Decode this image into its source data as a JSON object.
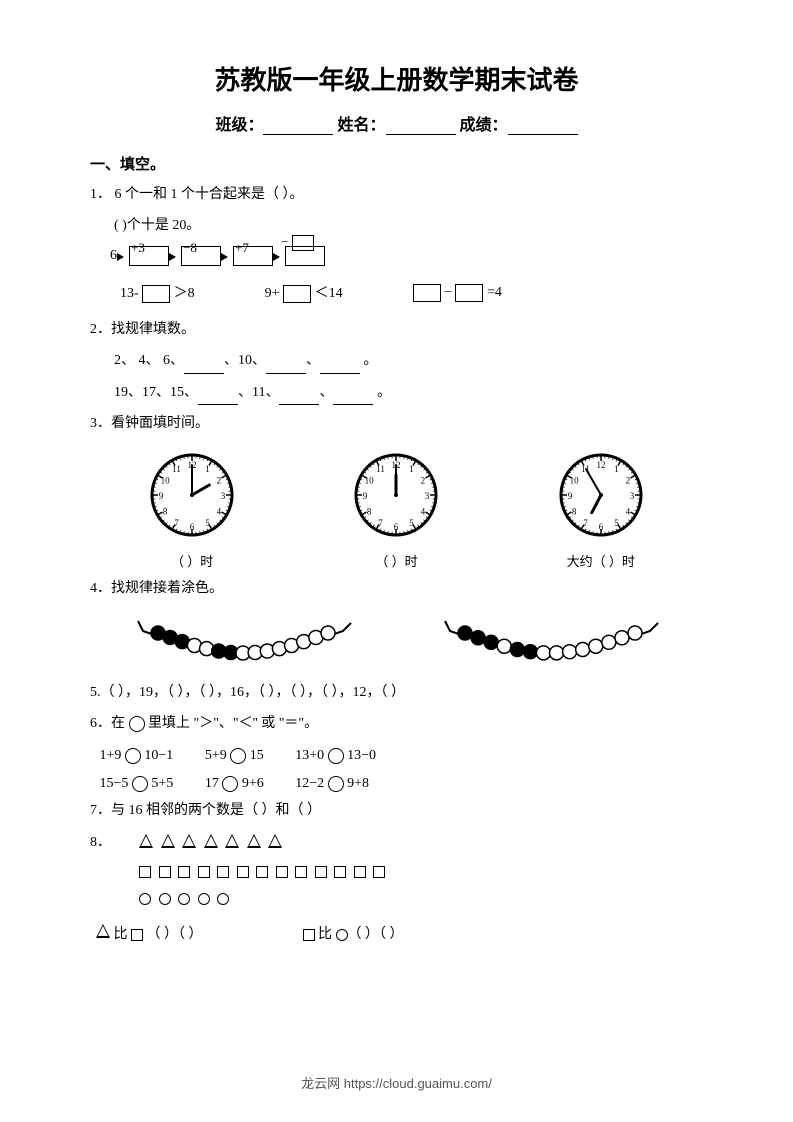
{
  "title": "苏教版一年级上册数学期末试卷",
  "header": {
    "class_label": "班级：",
    "name_label": "姓名：",
    "score_label": "成绩："
  },
  "section1": {
    "head": "一、填空。"
  },
  "q1": {
    "line_a": "1．  6 个一和 1 个十合起来是（     ）。",
    "line_b": "(        )个十是 20。",
    "chain_start": "6",
    "ops": [
      "+3",
      "−8",
      "+7"
    ],
    "ineq_a_left": "13-",
    "ineq_a_right": "＞8",
    "ineq_b_left": "9+",
    "ineq_b_right": "＜14",
    "ineq_c_op": "−",
    "ineq_c_right": "=4"
  },
  "q2": {
    "head": "2．找规律填数。",
    "seq_a": "2、  4、  6、",
    "seq_a_mid": "、10、",
    "seq_b": "19、17、15、",
    "seq_b_mid": "、11、"
  },
  "q3": {
    "head": "3．看钟面填时间。",
    "clocks": [
      {
        "hour": 2,
        "minute": 0,
        "label": "（      ）时"
      },
      {
        "hour": 12,
        "minute": 0,
        "label": "（      ）时"
      },
      {
        "hour": 6,
        "minute": 55,
        "label": "大约（     ）时"
      }
    ]
  },
  "q4": {
    "head": "4．找规律接着涂色。",
    "bead_patterns": [
      [
        1,
        1,
        1,
        0,
        0,
        1,
        1,
        0,
        0,
        0,
        0,
        0,
        0,
        0,
        0
      ],
      [
        1,
        1,
        1,
        0,
        1,
        1,
        0,
        0,
        0,
        0,
        0,
        0,
        0,
        0
      ]
    ]
  },
  "q5": {
    "text": "5.（    ），19，（    ），（    ），16，（    ），（    ），（    ），12，（    ）"
  },
  "q6": {
    "head": "6．在     里填上 \"＞\"、\"＜'' 或 \"＝\"。",
    "row1": [
      "1+9",
      "10−1",
      "5+9",
      "15",
      "13+0",
      "13−0"
    ],
    "row2": [
      "15−5",
      "5+5",
      "17",
      "9+6",
      "12−2",
      "9+8"
    ]
  },
  "q7": {
    "text": "7．与 16 相邻的两个数是（      ）和（      ）"
  },
  "q8": {
    "num": "8．",
    "triangles": 7,
    "squares": 13,
    "circles": 5,
    "cmp_a_left": "比",
    "cmp_a_paren": "（        ）（        ）",
    "cmp_b_left": "比",
    "cmp_b_paren": "（        ）（          ）"
  },
  "footer": "龙云网 https://cloud.guaimu.com/"
}
